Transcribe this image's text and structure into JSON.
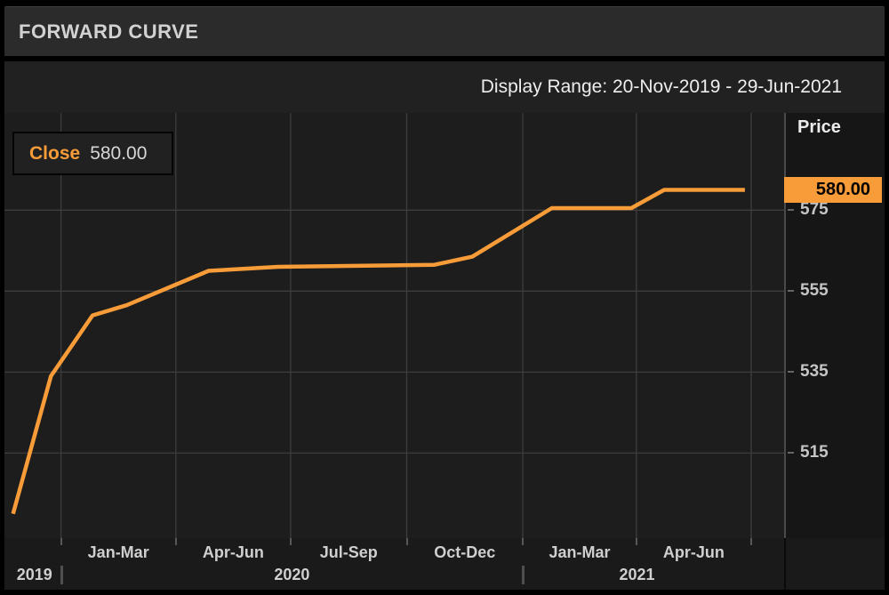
{
  "header": {
    "title": "FORWARD CURVE"
  },
  "toolbar": {
    "display_range": "Display Range: 20-Nov-2019 - 29-Jun-2021"
  },
  "legend": {
    "close_label": "Close",
    "close_value": "580.00"
  },
  "price_axis": {
    "title": "Price",
    "last_price_label": "580.00"
  },
  "colors": {
    "accent_orange": "#f79c38",
    "badge_bg": "#f79c38",
    "badge_text": "#000000",
    "grid": "#3d3d3d",
    "chart_bg": "#1d1d1d",
    "header_bg": "#2b2b2b",
    "text_light": "#d2d2d2"
  },
  "chart_data": {
    "type": "line",
    "title": "FORWARD CURVE",
    "last_value": 580.0,
    "x_axis": {
      "start": "2019-11-20",
      "end": "2021-07-01",
      "display_range": [
        "2019-11-20",
        "2021-06-29"
      ],
      "quarter_gridlines": [
        "2020-01-01",
        "2020-04-01",
        "2020-07-01",
        "2020-10-01",
        "2021-01-01",
        "2021-04-01",
        "2021-07-01"
      ],
      "quarters": [
        {
          "label": "Jan-Mar",
          "from": "2020-01-01",
          "to": "2020-04-01"
        },
        {
          "label": "Apr-Jun",
          "from": "2020-04-01",
          "to": "2020-07-01"
        },
        {
          "label": "Jul-Sep",
          "from": "2020-07-01",
          "to": "2020-10-01"
        },
        {
          "label": "Oct-Dec",
          "from": "2020-10-01",
          "to": "2021-01-01"
        },
        {
          "label": "Jan-Mar",
          "from": "2021-01-01",
          "to": "2021-04-01"
        },
        {
          "label": "Apr-Jun",
          "from": "2021-04-01",
          "to": "2021-07-01"
        }
      ],
      "years": [
        {
          "label": "2019",
          "from": "2019-11-20",
          "to": "2020-01-01"
        },
        {
          "label": "2020",
          "from": "2020-01-01",
          "to": "2021-01-01"
        },
        {
          "label": "2021",
          "from": "2021-01-01",
          "to": "2021-07-01"
        }
      ]
    },
    "y_axis": {
      "label": "Price",
      "ticks": [
        515,
        535,
        555,
        575
      ],
      "range": [
        494,
        599
      ],
      "grid": true
    },
    "series": [
      {
        "name": "Close",
        "color": "#f79c38",
        "points": [
          {
            "date": "2019-11-24",
            "price": 500
          },
          {
            "date": "2019-12-24",
            "price": 534
          },
          {
            "date": "2020-01-26",
            "price": 549
          },
          {
            "date": "2020-02-22",
            "price": 551.5
          },
          {
            "date": "2020-04-27",
            "price": 560
          },
          {
            "date": "2020-06-21",
            "price": 561
          },
          {
            "date": "2020-10-23",
            "price": 561.5
          },
          {
            "date": "2020-11-22",
            "price": 563.5
          },
          {
            "date": "2021-01-24",
            "price": 575.5
          },
          {
            "date": "2021-03-28",
            "price": 575.5
          },
          {
            "date": "2021-04-23",
            "price": 580
          },
          {
            "date": "2021-06-26",
            "price": 580
          }
        ]
      }
    ]
  }
}
